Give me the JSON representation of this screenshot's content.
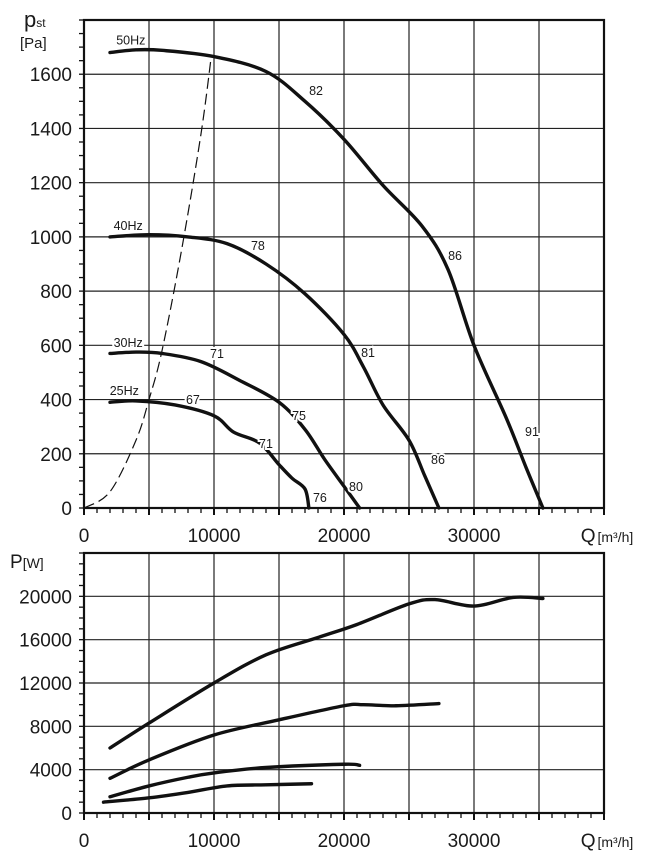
{
  "chart_data": [
    {
      "type": "line",
      "title": "",
      "ylabel_main": "p",
      "ylabel_sub": "st",
      "ylabel_unit": "[Pa]",
      "xlabel_main": "Q",
      "xlabel_unit": "[m³/h]",
      "xlim": [
        0,
        40000
      ],
      "ylim": [
        0,
        1800
      ],
      "xticks": [
        0,
        10000,
        20000,
        30000
      ],
      "yticks": [
        0,
        200,
        400,
        600,
        800,
        1000,
        1200,
        1400,
        1600
      ],
      "grid": true,
      "series": [
        {
          "name": "50Hz",
          "points": [
            [
              2000,
              1680
            ],
            [
              4000,
              1690
            ],
            [
              6000,
              1688
            ],
            [
              10000,
              1665
            ],
            [
              14000,
              1610
            ],
            [
              17000,
              1500
            ],
            [
              20000,
              1360
            ],
            [
              23000,
              1190
            ],
            [
              26000,
              1040
            ],
            [
              28000,
              880
            ],
            [
              30000,
              600
            ],
            [
              32500,
              330
            ],
            [
              34000,
              150
            ],
            [
              35300,
              0
            ]
          ]
        },
        {
          "name": "40Hz",
          "points": [
            [
              2000,
              1000
            ],
            [
              5000,
              1008
            ],
            [
              8000,
              1000
            ],
            [
              11000,
              975
            ],
            [
              14000,
              900
            ],
            [
              17000,
              790
            ],
            [
              20000,
              640
            ],
            [
              21500,
              520
            ],
            [
              23000,
              380
            ],
            [
              25000,
              250
            ],
            [
              26200,
              120
            ],
            [
              27300,
              0
            ]
          ]
        },
        {
          "name": "30Hz",
          "points": [
            [
              2000,
              570
            ],
            [
              4000,
              575
            ],
            [
              6000,
              570
            ],
            [
              9000,
              540
            ],
            [
              12000,
              470
            ],
            [
              15000,
              390
            ],
            [
              17000,
              290
            ],
            [
              18500,
              180
            ],
            [
              20000,
              80
            ],
            [
              21200,
              0
            ]
          ]
        },
        {
          "name": "25Hz",
          "points": [
            [
              2000,
              390
            ],
            [
              4000,
              395
            ],
            [
              7000,
              380
            ],
            [
              10000,
              340
            ],
            [
              11500,
              280
            ],
            [
              13500,
              240
            ],
            [
              15000,
              160
            ],
            [
              16000,
              110
            ],
            [
              17000,
              70
            ],
            [
              17300,
              0
            ]
          ]
        }
      ],
      "system_curve": {
        "style": "dashed",
        "points": [
          [
            0,
            0
          ],
          [
            2000,
            60
          ],
          [
            4000,
            250
          ],
          [
            5000,
            400
          ],
          [
            6000,
            580
          ],
          [
            7500,
            950
          ],
          [
            9000,
            1380
          ],
          [
            9800,
            1670
          ]
        ]
      },
      "series_labels": [
        {
          "text": "50Hz",
          "x": 3600,
          "y": 1725
        },
        {
          "text": "40Hz",
          "x": 3400,
          "y": 1040
        },
        {
          "text": "30Hz",
          "x": 3400,
          "y": 608
        },
        {
          "text": "25Hz",
          "x": 3100,
          "y": 431
        }
      ],
      "annotations": [
        {
          "text": "82",
          "x": 17850,
          "y": 1541
        },
        {
          "text": "86",
          "x": 28540,
          "y": 933
        },
        {
          "text": "91",
          "x": 34460,
          "y": 284
        },
        {
          "text": "78",
          "x": 13380,
          "y": 970
        },
        {
          "text": "81",
          "x": 21850,
          "y": 575
        },
        {
          "text": "86",
          "x": 27230,
          "y": 180
        },
        {
          "text": "71",
          "x": 10230,
          "y": 571
        },
        {
          "text": "75",
          "x": 16540,
          "y": 343
        },
        {
          "text": "80",
          "x": 20920,
          "y": 81
        },
        {
          "text": "67",
          "x": 8380,
          "y": 402
        },
        {
          "text": "71",
          "x": 14000,
          "y": 240
        },
        {
          "text": "76",
          "x": 18150,
          "y": 40
        }
      ]
    },
    {
      "type": "line",
      "title": "",
      "ylabel_main": "P",
      "ylabel_unit": "[W]",
      "xlabel_main": "Q",
      "xlabel_unit": "[m³/h]",
      "xlim": [
        0,
        40000
      ],
      "ylim": [
        0,
        24000
      ],
      "xticks": [
        0,
        10000,
        20000,
        30000
      ],
      "yticks": [
        0,
        4000,
        8000,
        12000,
        16000,
        20000
      ],
      "grid": true,
      "series": [
        {
          "name": "50Hz",
          "points": [
            [
              2000,
              6000
            ],
            [
              5000,
              8300
            ],
            [
              10000,
              12000
            ],
            [
              14000,
              14600
            ],
            [
              18000,
              16200
            ],
            [
              21000,
              17400
            ],
            [
              25000,
              19300
            ],
            [
              27000,
              19700
            ],
            [
              30000,
              19100
            ],
            [
              33000,
              19900
            ],
            [
              35300,
              19800
            ]
          ]
        },
        {
          "name": "40Hz",
          "points": [
            [
              2000,
              3200
            ],
            [
              5000,
              4900
            ],
            [
              10000,
              7200
            ],
            [
              15000,
              8600
            ],
            [
              20000,
              9900
            ],
            [
              21500,
              10000
            ],
            [
              24000,
              9900
            ],
            [
              27300,
              10100
            ]
          ]
        },
        {
          "name": "30Hz",
          "points": [
            [
              2000,
              1500
            ],
            [
              5000,
              2500
            ],
            [
              8000,
              3300
            ],
            [
              10000,
              3700
            ],
            [
              14000,
              4200
            ],
            [
              20000,
              4500
            ],
            [
              21200,
              4400
            ]
          ]
        },
        {
          "name": "25Hz",
          "points": [
            [
              1500,
              1000
            ],
            [
              5000,
              1400
            ],
            [
              8000,
              1900
            ],
            [
              11000,
              2500
            ],
            [
              14000,
              2600
            ],
            [
              17500,
              2700
            ]
          ]
        }
      ]
    }
  ]
}
